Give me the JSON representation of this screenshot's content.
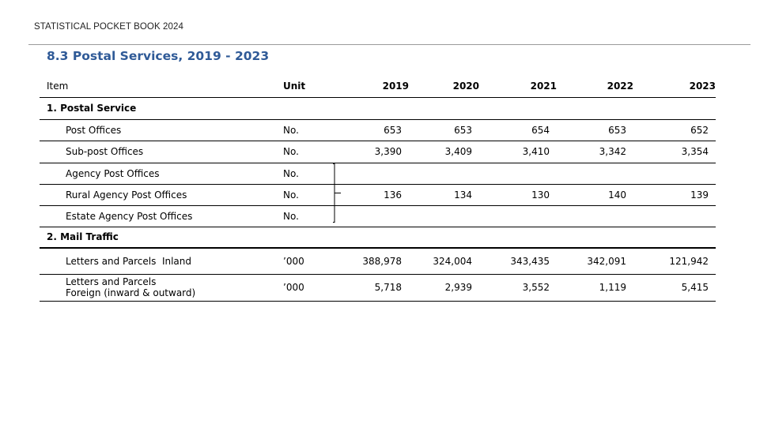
{
  "document": {
    "header": "STATISTICAL POCKET BOOK 2024",
    "title": "8.3 Postal Services, 2019 - 2023"
  },
  "table": {
    "columns": {
      "item": "Item",
      "unit": "Unit",
      "years": [
        "2019",
        "2020",
        "2021",
        "2022",
        "2023"
      ]
    },
    "sections": [
      {
        "label": "1. Postal Service",
        "rows": [
          {
            "item": "Post Offices",
            "unit": "No.",
            "values": [
              "653",
              "653",
              "654",
              "653",
              "652"
            ]
          },
          {
            "item": "Sub-post Offices",
            "unit": "No.",
            "values": [
              "3,390",
              "3,409",
              "3,410",
              "3,342",
              "3,354"
            ]
          },
          {
            "item": "Agency Post Offices",
            "unit": "No."
          },
          {
            "item": "Rural Agency Post Offices",
            "unit": "No.",
            "values": [
              "136",
              "134",
              "130",
              "140",
              "139"
            ]
          },
          {
            "item": "Estate Agency Post Offices",
            "unit": "No."
          }
        ]
      },
      {
        "label": "2. Mail Traffic",
        "rows": [
          {
            "item": "Letters and Parcels  Inland",
            "unit": "’000",
            "values": [
              "388,978",
              "324,004",
              "343,435",
              "342,091",
              "121,942"
            ]
          },
          {
            "item_lines": [
              "Letters and Parcels",
              "Foreign (inward & outward)"
            ],
            "unit": "’000",
            "values": [
              "5,718",
              "2,939",
              "3,552",
              "1,119",
              "5,415"
            ]
          }
        ]
      }
    ]
  }
}
